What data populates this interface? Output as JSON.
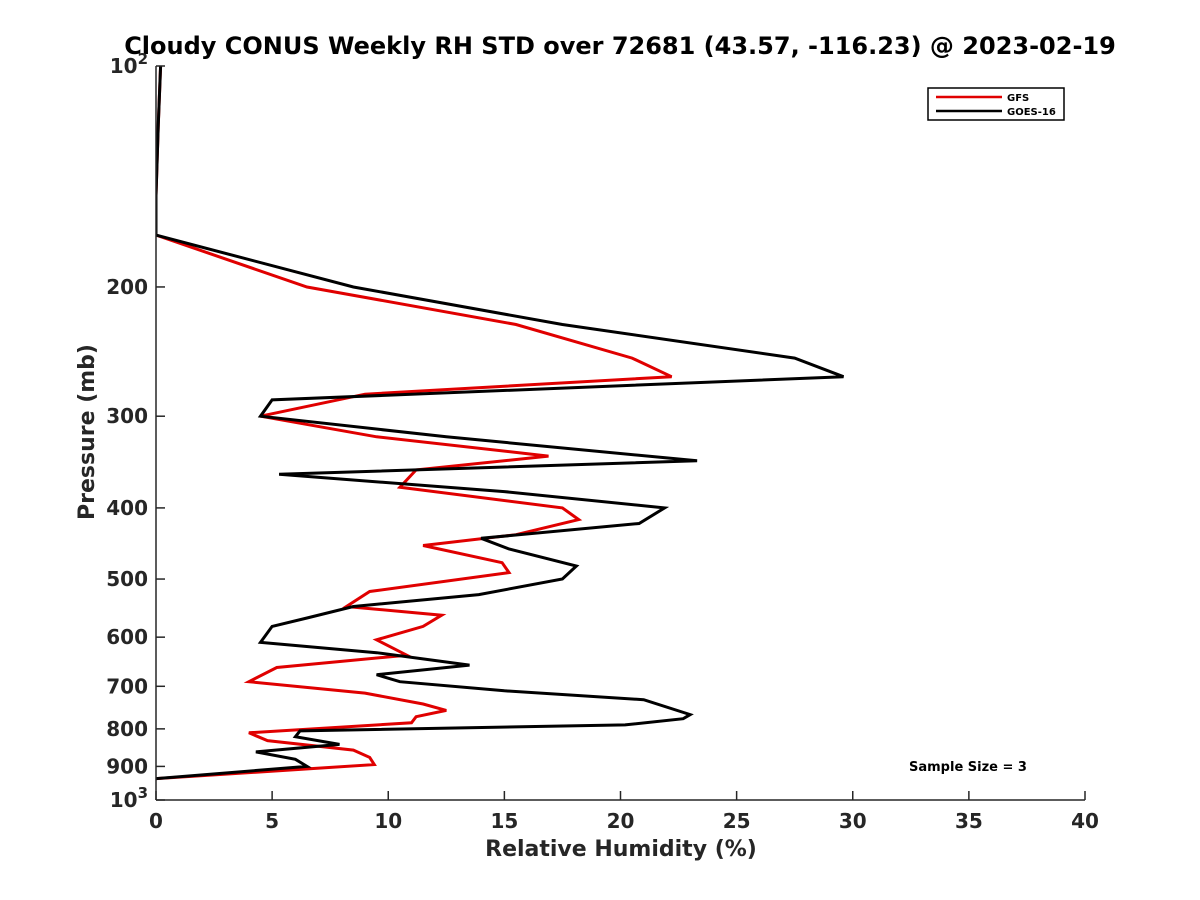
{
  "chart_data": {
    "type": "line",
    "title": "Cloudy CONUS Weekly RH STD over 72681 (43.57, -116.23) @ 2023-02-19",
    "xlabel": "Relative Humidity (%)",
    "ylabel": "Pressure (mb)",
    "xlim": [
      0,
      40
    ],
    "ylim": [
      100,
      1000
    ],
    "yscale": "log",
    "y_reversed": true,
    "grid": false,
    "legend_position": "top-right",
    "x_ticks": [
      "0",
      "5",
      "10",
      "15",
      "20",
      "25",
      "30",
      "35",
      "40"
    ],
    "y_ticks": [
      {
        "value": 100,
        "base": "10",
        "exp": "2"
      },
      {
        "value": 200,
        "label": "200"
      },
      {
        "value": 300,
        "label": "300"
      },
      {
        "value": 400,
        "label": "400"
      },
      {
        "value": 500,
        "label": "500"
      },
      {
        "value": 600,
        "label": "600"
      },
      {
        "value": 700,
        "label": "700"
      },
      {
        "value": 800,
        "label": "800"
      },
      {
        "value": 900,
        "label": "900"
      },
      {
        "value": 1000,
        "base": "10",
        "exp": "3"
      }
    ],
    "annotation": "Sample Size = 3",
    "series": [
      {
        "name": "GFS",
        "color": "#e00000",
        "points": [
          [
            0.2,
            100
          ],
          [
            0.1,
            120
          ],
          [
            0,
            150
          ],
          [
            0,
            170
          ],
          [
            6.5,
            200
          ],
          [
            15.5,
            225
          ],
          [
            20.5,
            250
          ],
          [
            22.2,
            265
          ],
          [
            9,
            280
          ],
          [
            4.5,
            300
          ],
          [
            9.5,
            320
          ],
          [
            16.9,
            340
          ],
          [
            11.2,
            355
          ],
          [
            10.5,
            375
          ],
          [
            17.5,
            400
          ],
          [
            18.2,
            415
          ],
          [
            15.5,
            435
          ],
          [
            11.5,
            450
          ],
          [
            14.9,
            475
          ],
          [
            15.2,
            490
          ],
          [
            9.2,
            520
          ],
          [
            8.2,
            545
          ],
          [
            12.3,
            560
          ],
          [
            11.5,
            580
          ],
          [
            9.5,
            605
          ],
          [
            10.8,
            635
          ],
          [
            5.2,
            660
          ],
          [
            4,
            690
          ],
          [
            9,
            715
          ],
          [
            11.5,
            740
          ],
          [
            12.5,
            755
          ],
          [
            11.2,
            770
          ],
          [
            11,
            785
          ],
          [
            4,
            810
          ],
          [
            4.8,
            830
          ],
          [
            8.5,
            855
          ],
          [
            9.2,
            875
          ],
          [
            9.4,
            895
          ],
          [
            0,
            935
          ]
        ]
      },
      {
        "name": "GOES-16",
        "color": "#000000",
        "points": [
          [
            0.2,
            100
          ],
          [
            0.1,
            120
          ],
          [
            0,
            150
          ],
          [
            0,
            170
          ],
          [
            8.5,
            200
          ],
          [
            17.5,
            225
          ],
          [
            27.5,
            250
          ],
          [
            29.6,
            265
          ],
          [
            5,
            285
          ],
          [
            4.5,
            300
          ],
          [
            12.5,
            320
          ],
          [
            23.3,
            345
          ],
          [
            5.3,
            360
          ],
          [
            15,
            380
          ],
          [
            21.9,
            400
          ],
          [
            20.8,
            420
          ],
          [
            14,
            440
          ],
          [
            15.2,
            455
          ],
          [
            18.1,
            480
          ],
          [
            17.5,
            500
          ],
          [
            13.9,
            525
          ],
          [
            8.5,
            545
          ],
          [
            6.5,
            565
          ],
          [
            5,
            580
          ],
          [
            4.5,
            610
          ],
          [
            9.5,
            630
          ],
          [
            13.5,
            655
          ],
          [
            9.5,
            675
          ],
          [
            10.5,
            690
          ],
          [
            15,
            710
          ],
          [
            21,
            730
          ],
          [
            23,
            765
          ],
          [
            22.7,
            775
          ],
          [
            20.2,
            790
          ],
          [
            6.2,
            805
          ],
          [
            6,
            820
          ],
          [
            7.9,
            840
          ],
          [
            4.3,
            860
          ],
          [
            6,
            880
          ],
          [
            6.5,
            900
          ],
          [
            0,
            935
          ]
        ]
      }
    ]
  }
}
